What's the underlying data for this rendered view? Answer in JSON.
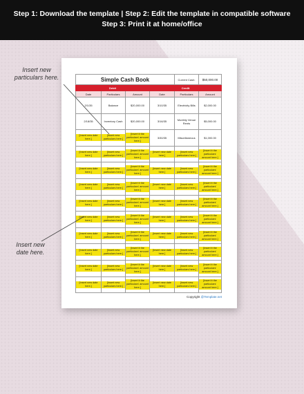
{
  "banner": {
    "line1": "Step 1: Download the template | Step 2: Edit the template in compatible software",
    "line2": "Step 3: Print it at home/office"
  },
  "callouts": {
    "particulars": "Insert new\nparticulars here.",
    "date": "Insert new\ndate here."
  },
  "doc": {
    "title": "Simple Cash Book",
    "current_cash_label": "Current Cash:",
    "current_cash_value": "$50,000.00",
    "debit_label": "Debit",
    "credit_label": "Credit",
    "col_date": "Date",
    "col_particulars": "Particulars",
    "col_amount": "Amount",
    "rows": [
      {
        "d_date": "2/1/35",
        "d_part": "Balance",
        "d_amt": "$20,000.00",
        "c_date": "3/10/35",
        "c_part": "Electricity Bills",
        "c_amt": "$2,000.00"
      },
      {
        "d_date": "2/18/35",
        "d_part": "Inventory Cash",
        "d_amt": "$20,000.00",
        "c_date": "3/16/35",
        "c_part": "Monthly Venue Rents",
        "c_amt": "$5,000.00"
      },
      {
        "d_date": "[Insert new date here.]",
        "d_part": "[Insert new particulars here.]",
        "d_amt": "[Insert it the particulars' amount here.]",
        "c_date": "3/30/35",
        "c_part": "Miscellaneous",
        "c_amt": "$1,000.00"
      }
    ],
    "ph_date": "[Insert new date here.]",
    "ph_part": "[Insert new particulars here.]",
    "ph_amt": "[Insert it the particulars' amount here.]",
    "copyright": "Copyright",
    "brand": "@Template.net"
  },
  "colors": {
    "accent": "#d61f2c",
    "placeholder": "#f4e20e",
    "banner": "#101010"
  }
}
